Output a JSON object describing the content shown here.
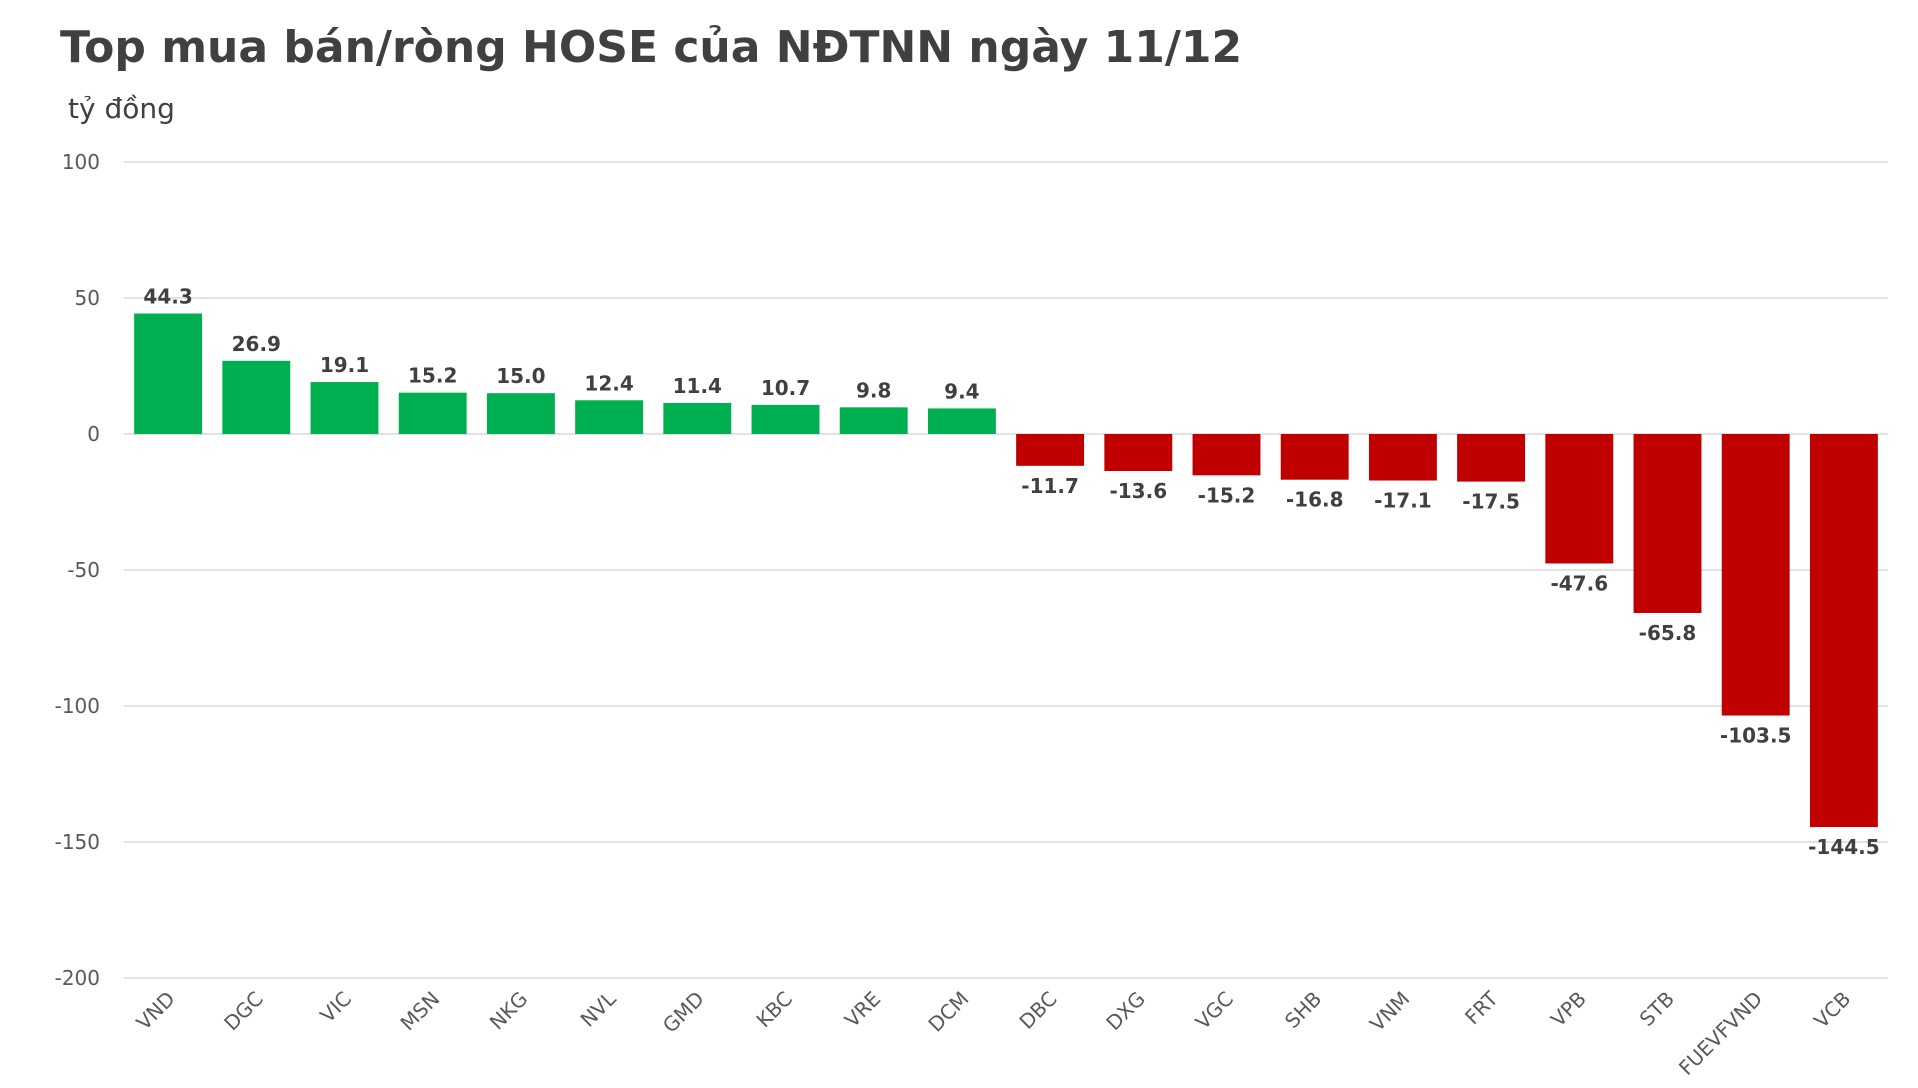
{
  "chart_data": {
    "type": "bar",
    "title": "Top mua bán/ròng HOSE của NĐTNN ngày 11/12",
    "ylabel": "tỷ đồng",
    "ylim": [
      -200,
      100
    ],
    "yticks": [
      100,
      50,
      0,
      -50,
      -100,
      -150,
      -200
    ],
    "ytick_labels": [
      "100",
      "50",
      "0",
      "-50",
      "-100",
      "-150",
      "-200"
    ],
    "grid": true,
    "categories": [
      "VND",
      "DGC",
      "VIC",
      "MSN",
      "NKG",
      "NVL",
      "GMD",
      "KBC",
      "VRE",
      "DCM",
      "DBC",
      "DXG",
      "VGC",
      "SHB",
      "VNM",
      "FRT",
      "VPB",
      "STB",
      "FUEVFVND",
      "VCB"
    ],
    "values": [
      44.3,
      26.9,
      19.1,
      15.2,
      15.0,
      12.4,
      11.4,
      10.7,
      9.8,
      9.4,
      -11.7,
      -13.6,
      -15.2,
      -16.8,
      -17.1,
      -17.5,
      -47.6,
      -65.8,
      -103.5,
      -144.5
    ],
    "value_labels": [
      "44.3",
      "26.9",
      "19.1",
      "15.2",
      "15.0",
      "12.4",
      "11.4",
      "10.7",
      "9.8",
      "9.4",
      "-11.7",
      "-13.6",
      "-15.2",
      "-16.8",
      "-17.1",
      "-17.5",
      "-47.6",
      "-65.8",
      "-103.5",
      "-144.5"
    ],
    "colors": {
      "positive": "#00b050",
      "negative": "#c00000",
      "grid": "#d9d9d9"
    }
  }
}
